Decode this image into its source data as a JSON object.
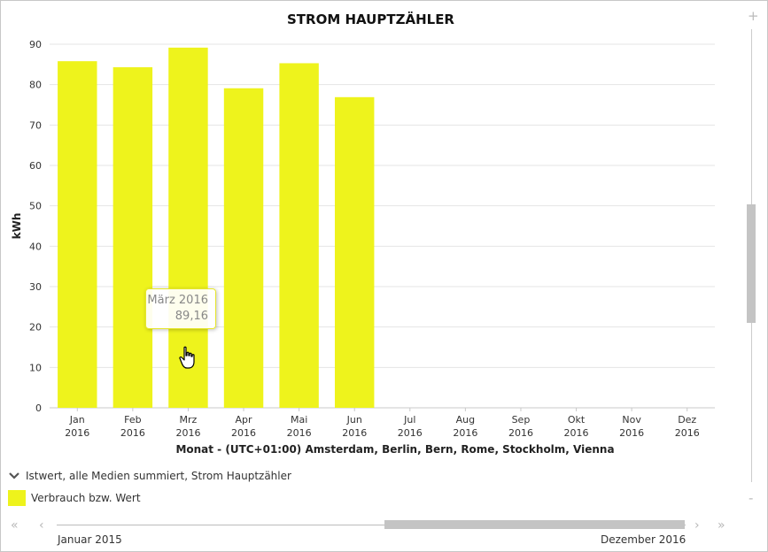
{
  "chart_data": {
    "type": "bar",
    "title": "STROM HAUPTZÄHLER",
    "xlabel": "Monat - (UTC+01:00) Amsterdam, Berlin, Bern, Rome, Stockholm, Vienna",
    "ylabel": "kWh",
    "ylim": [
      0,
      90
    ],
    "yticks": [
      "0",
      "10",
      "20",
      "30",
      "40",
      "50",
      "60",
      "70",
      "80",
      "90"
    ],
    "grid": true,
    "categories": [
      {
        "month": "Jan",
        "year": "2016"
      },
      {
        "month": "Feb",
        "year": "2016"
      },
      {
        "month": "Mrz",
        "year": "2016"
      },
      {
        "month": "Apr",
        "year": "2016"
      },
      {
        "month": "Mai",
        "year": "2016"
      },
      {
        "month": "Jun",
        "year": "2016"
      },
      {
        "month": "Jul",
        "year": "2016"
      },
      {
        "month": "Aug",
        "year": "2016"
      },
      {
        "month": "Sep",
        "year": "2016"
      },
      {
        "month": "Okt",
        "year": "2016"
      },
      {
        "month": "Nov",
        "year": "2016"
      },
      {
        "month": "Dez",
        "year": "2016"
      }
    ],
    "series": [
      {
        "name": "Verbrauch bzw. Wert",
        "color": "#eef31c",
        "values": [
          85.8,
          84.3,
          89.16,
          79.1,
          85.3,
          76.9,
          null,
          null,
          null,
          null,
          null,
          null
        ]
      }
    ]
  },
  "tooltip": {
    "category": "März 2016",
    "value": "89,16"
  },
  "legend": {
    "group_label": "Istwert, alle Medien summiert, Strom Hauptzähler",
    "item_label": "Verbrauch bzw. Wert"
  },
  "navigator": {
    "start_label": "Januar 2015",
    "end_label": "Dezember 2016",
    "window_start_fraction": 0.52,
    "window_end_fraction": 1.0
  },
  "icons": {
    "legend_toggle": "chevron-down-icon",
    "cursor": "hand-pointer-icon",
    "nav_first": "double-chevron-left-icon",
    "nav_prev": "chevron-left-icon",
    "nav_next": "chevron-right-icon",
    "nav_last": "double-chevron-right-icon",
    "zoom_in": "plus-icon",
    "zoom_out": "minus-icon"
  }
}
